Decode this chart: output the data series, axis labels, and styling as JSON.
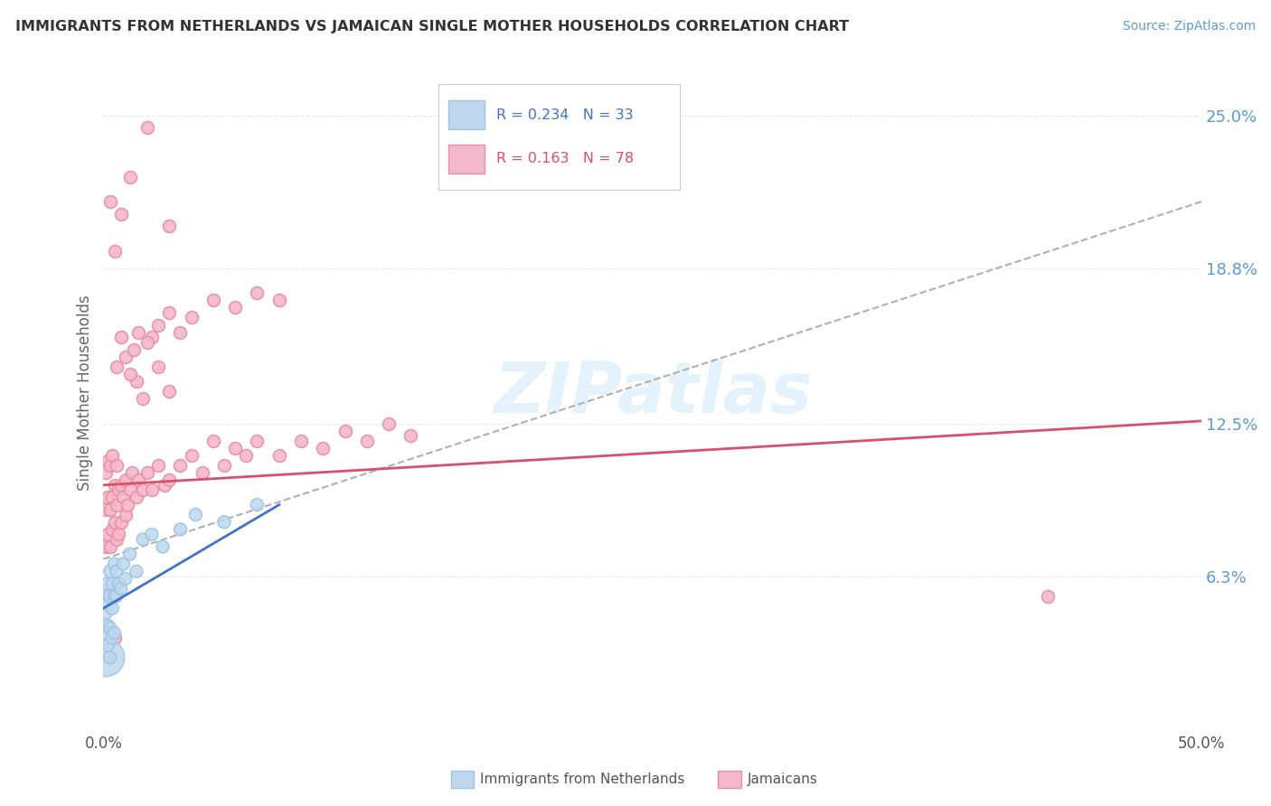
{
  "title": "IMMIGRANTS FROM NETHERLANDS VS JAMAICAN SINGLE MOTHER HOUSEHOLDS CORRELATION CHART",
  "source": "Source: ZipAtlas.com",
  "ylabel": "Single Mother Households",
  "legend_entries": [
    {
      "label": "Immigrants from Netherlands",
      "color": "#add8f7",
      "R": 0.234,
      "N": 33
    },
    {
      "label": "Jamaicans",
      "color": "#f9b8c4",
      "R": 0.163,
      "N": 78
    }
  ],
  "ytick_labels": [
    "6.3%",
    "12.5%",
    "18.8%",
    "25.0%"
  ],
  "ytick_values": [
    0.063,
    0.125,
    0.188,
    0.25
  ],
  "xlim": [
    0.0,
    0.5
  ],
  "ylim": [
    0.0,
    0.275
  ],
  "watermark": "ZIPatlas",
  "background_color": "#ffffff",
  "grid_color": "#e8e8e8",
  "netherlands_x": [
    0.001,
    0.001,
    0.001,
    0.001,
    0.002,
    0.002,
    0.002,
    0.002,
    0.003,
    0.003,
    0.003,
    0.003,
    0.004,
    0.004,
    0.004,
    0.005,
    0.005,
    0.005,
    0.006,
    0.006,
    0.007,
    0.008,
    0.009,
    0.01,
    0.012,
    0.015,
    0.018,
    0.022,
    0.027,
    0.035,
    0.042,
    0.055,
    0.07
  ],
  "netherlands_y": [
    0.03,
    0.038,
    0.048,
    0.055,
    0.035,
    0.043,
    0.052,
    0.06,
    0.03,
    0.042,
    0.055,
    0.065,
    0.038,
    0.05,
    0.06,
    0.04,
    0.055,
    0.068,
    0.055,
    0.065,
    0.06,
    0.058,
    0.068,
    0.062,
    0.072,
    0.065,
    0.078,
    0.08,
    0.075,
    0.082,
    0.088,
    0.085,
    0.092
  ],
  "jamaicans_x": [
    0.001,
    0.001,
    0.001,
    0.002,
    0.002,
    0.002,
    0.003,
    0.003,
    0.003,
    0.004,
    0.004,
    0.004,
    0.005,
    0.005,
    0.006,
    0.006,
    0.006,
    0.007,
    0.007,
    0.008,
    0.008,
    0.009,
    0.01,
    0.01,
    0.011,
    0.012,
    0.013,
    0.015,
    0.016,
    0.018,
    0.02,
    0.022,
    0.025,
    0.028,
    0.03,
    0.035,
    0.04,
    0.045,
    0.05,
    0.055,
    0.06,
    0.065,
    0.07,
    0.08,
    0.09,
    0.1,
    0.11,
    0.12,
    0.13,
    0.14,
    0.015,
    0.018,
    0.025,
    0.03,
    0.022,
    0.008,
    0.006,
    0.01,
    0.012,
    0.014,
    0.016,
    0.02,
    0.025,
    0.03,
    0.035,
    0.04,
    0.05,
    0.06,
    0.07,
    0.08,
    0.003,
    0.005,
    0.008,
    0.012,
    0.02,
    0.03,
    0.43,
    0.005
  ],
  "jamaicans_y": [
    0.075,
    0.09,
    0.105,
    0.08,
    0.095,
    0.11,
    0.075,
    0.09,
    0.108,
    0.082,
    0.095,
    0.112,
    0.085,
    0.1,
    0.078,
    0.092,
    0.108,
    0.08,
    0.098,
    0.085,
    0.1,
    0.095,
    0.088,
    0.102,
    0.092,
    0.098,
    0.105,
    0.095,
    0.102,
    0.098,
    0.105,
    0.098,
    0.108,
    0.1,
    0.102,
    0.108,
    0.112,
    0.105,
    0.118,
    0.108,
    0.115,
    0.112,
    0.118,
    0.112,
    0.118,
    0.115,
    0.122,
    0.118,
    0.125,
    0.12,
    0.142,
    0.135,
    0.148,
    0.138,
    0.16,
    0.16,
    0.148,
    0.152,
    0.145,
    0.155,
    0.162,
    0.158,
    0.165,
    0.17,
    0.162,
    0.168,
    0.175,
    0.172,
    0.178,
    0.175,
    0.215,
    0.195,
    0.21,
    0.225,
    0.245,
    0.205,
    0.055,
    0.038
  ],
  "netherlands_line_color": "#4472c4",
  "netherlands_scatter_color": "#bdd7ee",
  "netherlands_scatter_edge": "#9ec5e3",
  "netherlands_big_size": 900,
  "netherlands_small_size": 100,
  "jamaicans_line_color": "#d94f6e",
  "jamaicans_scatter_color": "#f4b8cc",
  "jamaicans_scatter_edge": "#e8909f",
  "jamaicans_size": 100,
  "trend_line_color": "#b0b0b0",
  "trend_line_style": "--",
  "netherlands_trend_x0": 0.0,
  "netherlands_trend_y0": 0.05,
  "netherlands_trend_x1": 0.08,
  "netherlands_trend_y1": 0.092,
  "jamaicans_trend_x0": 0.0,
  "jamaicans_trend_y0": 0.1,
  "jamaicans_trend_x1": 0.5,
  "jamaicans_trend_y1": 0.126,
  "overall_trend_x0": 0.0,
  "overall_trend_y0": 0.07,
  "overall_trend_x1": 0.5,
  "overall_trend_y1": 0.215
}
